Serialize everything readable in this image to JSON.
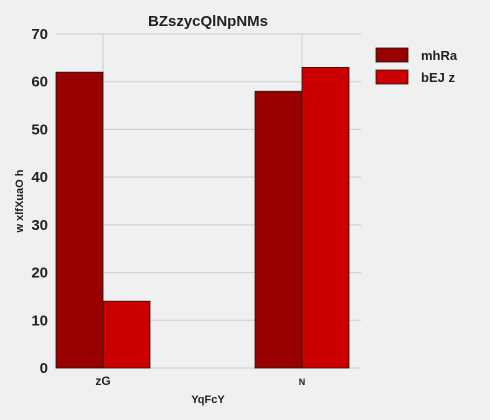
{
  "chart_data": {
    "type": "bar",
    "title": "BZszycQlNpNMs",
    "xlabel": "YqFcY",
    "ylabel": "w xlfXuaO h",
    "categories": [
      "zG",
      "N"
    ],
    "series": [
      {
        "name": "mhRa",
        "values": [
          62,
          58
        ],
        "color": "#990000"
      },
      {
        "name": "bEJ z",
        "values": [
          14,
          63
        ],
        "color": "#cc0000"
      }
    ],
    "ylim": [
      0,
      70
    ],
    "yticks": [
      0,
      10,
      20,
      30,
      40,
      50,
      60,
      70
    ],
    "grid": true,
    "legend_position": "top-right"
  }
}
